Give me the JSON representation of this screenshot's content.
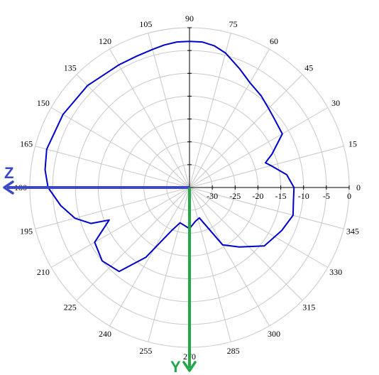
{
  "chart_data": {
    "type": "polar-line",
    "angle_unit": "degrees",
    "angle_ticks": [
      0,
      15,
      30,
      45,
      60,
      75,
      90,
      105,
      120,
      135,
      150,
      165,
      180,
      195,
      210,
      225,
      240,
      255,
      270,
      285,
      300,
      315,
      330,
      345
    ],
    "radial_ticks": [
      -30,
      -25,
      -20,
      -15,
      -10,
      -5,
      0
    ],
    "radial_range": [
      -35,
      0
    ],
    "grid": true,
    "series": [
      {
        "color": "#0000cc",
        "points": [
          [
            0,
            -12.1
          ],
          [
            7.5,
            -13.5
          ],
          [
            15,
            -16.5
          ],
          [
            18,
            -17.5
          ],
          [
            22,
            -15.5
          ],
          [
            30,
            -11.5
          ],
          [
            40,
            -11.0
          ],
          [
            45,
            -10.5
          ],
          [
            52,
            -9.5
          ],
          [
            60,
            -8.5
          ],
          [
            67,
            -6.8
          ],
          [
            75,
            -4.5
          ],
          [
            80,
            -3.5
          ],
          [
            85,
            -3.0
          ],
          [
            90,
            -3.0
          ],
          [
            95,
            -3.0
          ],
          [
            100,
            -3.3
          ],
          [
            105,
            -3.7
          ],
          [
            112,
            -4.0
          ],
          [
            120,
            -4.0
          ],
          [
            135,
            -3.4
          ],
          [
            150,
            -3.0
          ],
          [
            165,
            -2.6
          ],
          [
            173,
            -3.1
          ],
          [
            180,
            -4.0
          ],
          [
            188,
            -6.5
          ],
          [
            195,
            -9.0
          ],
          [
            200,
            -12.0
          ],
          [
            202,
            -16.0
          ],
          [
            210,
            -11.0
          ],
          [
            220,
            -10.0
          ],
          [
            230,
            -11.0
          ],
          [
            238,
            -17.0
          ],
          [
            248,
            -25.0
          ],
          [
            255,
            -27.0
          ],
          [
            270,
            -26.0
          ],
          [
            280,
            -27.5
          ],
          [
            288,
            -28.0
          ],
          [
            300,
            -20.5
          ],
          [
            310,
            -18.0
          ],
          [
            322,
            -14.2
          ],
          [
            335,
            -12.7
          ],
          [
            345,
            -11.5
          ],
          [
            352,
            -12.0
          ],
          [
            360,
            -12.1
          ]
        ]
      }
    ],
    "axes_overlay": [
      {
        "name": "Z",
        "color": "#3d49c2"
      },
      {
        "name": "Y",
        "color": "#22a84a"
      }
    ]
  }
}
